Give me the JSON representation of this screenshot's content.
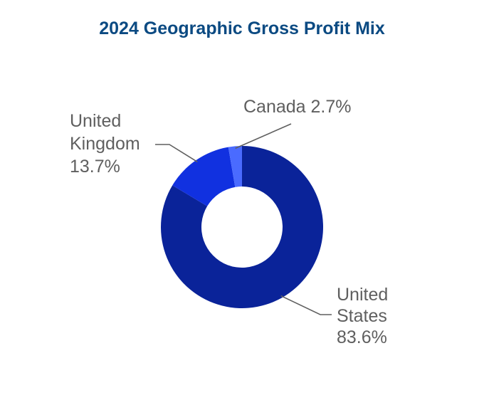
{
  "chart_data": {
    "type": "pie",
    "title": "2024 Geographic Gross Profit Mix",
    "donut": true,
    "slices": [
      {
        "label_lines": [
          "United",
          "States"
        ],
        "value": 83.6,
        "value_label": "83.6%",
        "color": "#0a2399"
      },
      {
        "label_lines": [
          "United",
          "Kingdom"
        ],
        "value": 13.7,
        "value_label": "13.7%",
        "color": "#1131e0"
      },
      {
        "label_lines": [
          "Canada"
        ],
        "value": 2.7,
        "value_label": "2.7%",
        "color": "#4a6bff"
      }
    ]
  },
  "colors": {
    "title": "#0b4a82",
    "label_text": "#5f5f5f"
  }
}
